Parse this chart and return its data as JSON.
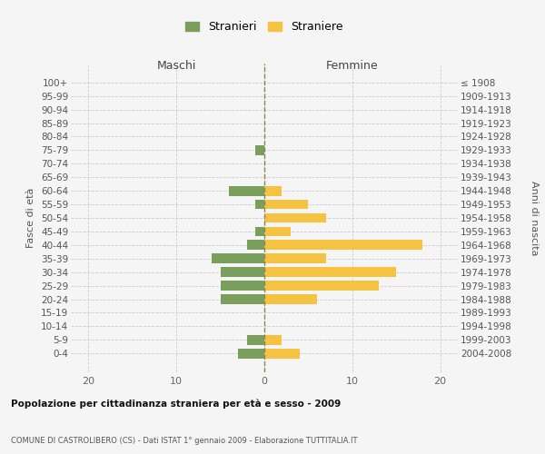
{
  "age_groups": [
    "0-4",
    "5-9",
    "10-14",
    "15-19",
    "20-24",
    "25-29",
    "30-34",
    "35-39",
    "40-44",
    "45-49",
    "50-54",
    "55-59",
    "60-64",
    "65-69",
    "70-74",
    "75-79",
    "80-84",
    "85-89",
    "90-94",
    "95-99",
    "100+"
  ],
  "birth_years": [
    "2004-2008",
    "1999-2003",
    "1994-1998",
    "1989-1993",
    "1984-1988",
    "1979-1983",
    "1974-1978",
    "1969-1973",
    "1964-1968",
    "1959-1963",
    "1954-1958",
    "1949-1953",
    "1944-1948",
    "1939-1943",
    "1934-1938",
    "1929-1933",
    "1924-1928",
    "1919-1923",
    "1914-1918",
    "1909-1913",
    "≤ 1908"
  ],
  "stranieri": [
    3,
    2,
    0,
    0,
    5,
    5,
    5,
    6,
    2,
    1,
    0,
    1,
    4,
    0,
    0,
    1,
    0,
    0,
    0,
    0,
    0
  ],
  "straniere": [
    4,
    2,
    0,
    0,
    6,
    13,
    15,
    7,
    18,
    3,
    7,
    5,
    2,
    0,
    0,
    0,
    0,
    0,
    0,
    0,
    0
  ],
  "color_stranieri": "#7a9e5c",
  "color_straniere": "#f5c242",
  "xlim_left": -22,
  "xlim_right": 22,
  "xticks": [
    -20,
    -10,
    0,
    10,
    20
  ],
  "xticklabels": [
    "20",
    "10",
    "0",
    "10",
    "20"
  ],
  "title_main": "Popolazione per cittadinanza straniera per età e sesso - 2009",
  "title_sub": "COMUNE DI CASTROLIBERO (CS) - Dati ISTAT 1° gennaio 2009 - Elaborazione TUTTITALIA.IT",
  "ylabel_left": "Fasce di età",
  "ylabel_right": "Anni di nascita",
  "label_maschi": "Maschi",
  "label_femmine": "Femmine",
  "legend_stranieri": "Stranieri",
  "legend_straniere": "Straniere",
  "bg_color": "#f5f5f5",
  "bar_height": 0.72,
  "grid_color": "#cccccc"
}
